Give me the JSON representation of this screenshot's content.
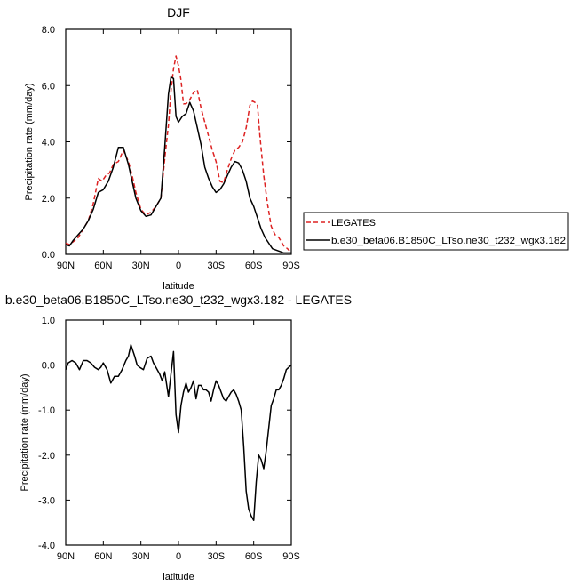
{
  "chart_data": [
    {
      "type": "line",
      "title": "DJF",
      "xlabel": "latitude",
      "ylabel": "Precipitation rate (mm/day)",
      "xlim": [
        90,
        -90
      ],
      "ylim": [
        0,
        8
      ],
      "x_ticks": [
        90,
        60,
        30,
        0,
        -30,
        -60,
        -90
      ],
      "x_tick_labels": [
        "90N",
        "60N",
        "30N",
        "0",
        "30S",
        "60S",
        "90S"
      ],
      "y_ticks": [
        0,
        2,
        4,
        6,
        8
      ],
      "y_tick_labels": [
        "0.0",
        "2.0",
        "4.0",
        "6.0",
        "8.0"
      ],
      "grid": false,
      "legend_position": "right",
      "series": [
        {
          "name": "LEGATES",
          "color": "#dd2222",
          "dash": "dashed",
          "x": [
            90,
            87,
            84,
            80,
            76,
            72,
            68,
            64,
            61,
            58,
            55,
            52,
            48,
            44,
            40,
            37,
            34,
            30,
            26,
            22,
            18,
            14,
            11,
            8,
            6,
            4,
            2,
            0,
            -2,
            -4,
            -6,
            -9,
            -12,
            -15,
            -18,
            -21,
            -24,
            -27,
            -30,
            -33,
            -36,
            -39,
            -42,
            -45,
            -48,
            -51,
            -54,
            -57,
            -59,
            -61,
            -63,
            -65,
            -68,
            -71,
            -74,
            -77,
            -80,
            -84,
            -87,
            -90
          ],
          "y": [
            0.4,
            0.35,
            0.45,
            0.6,
            0.9,
            1.2,
            1.8,
            2.7,
            2.6,
            2.8,
            2.9,
            3.2,
            3.3,
            3.7,
            3.3,
            2.8,
            2.2,
            1.6,
            1.4,
            1.5,
            1.7,
            2.0,
            3.4,
            4.6,
            5.8,
            6.6,
            7.05,
            6.7,
            6.2,
            5.35,
            5.35,
            5.5,
            5.75,
            5.85,
            5.2,
            4.7,
            4.2,
            3.7,
            3.3,
            2.6,
            2.55,
            3.0,
            3.4,
            3.7,
            3.8,
            4.0,
            4.5,
            5.3,
            5.45,
            5.4,
            5.3,
            4.2,
            2.8,
            1.8,
            1.0,
            0.7,
            0.6,
            0.3,
            0.2,
            0.05
          ]
        },
        {
          "name": "b.e30_beta06.B1850C_LTso.ne30_t232_wgx3.182",
          "color": "#000000",
          "dash": "solid",
          "x": [
            90,
            87,
            84,
            80,
            76,
            72,
            68,
            64,
            60,
            56,
            52,
            48,
            44,
            40,
            37,
            34,
            30,
            26,
            22,
            18,
            14,
            11,
            8,
            6,
            4,
            2,
            0,
            -3,
            -6,
            -9,
            -12,
            -15,
            -18,
            -21,
            -24,
            -27,
            -30,
            -33,
            -36,
            -39,
            -42,
            -45,
            -48,
            -51,
            -54,
            -57,
            -60,
            -63,
            -66,
            -69,
            -72,
            -75,
            -78,
            -81,
            -84,
            -87,
            -90
          ],
          "y": [
            0.35,
            0.3,
            0.5,
            0.7,
            0.9,
            1.2,
            1.6,
            2.2,
            2.3,
            2.6,
            3.1,
            3.8,
            3.8,
            3.2,
            2.6,
            2.0,
            1.55,
            1.35,
            1.4,
            1.7,
            2.0,
            3.8,
            5.7,
            6.3,
            6.25,
            4.9,
            4.7,
            4.9,
            5.0,
            5.4,
            5.1,
            4.5,
            3.9,
            3.1,
            2.7,
            2.4,
            2.2,
            2.3,
            2.5,
            2.8,
            3.1,
            3.3,
            3.25,
            3.0,
            2.6,
            2.0,
            1.7,
            1.3,
            0.9,
            0.6,
            0.4,
            0.2,
            0.15,
            0.1,
            0.05,
            0.05,
            0.05
          ]
        }
      ]
    },
    {
      "type": "line",
      "title": "b.e30_beta06.B1850C_LTso.ne30_t232_wgx3.182 - LEGATES",
      "xlabel": "latitude",
      "ylabel": "Precipitation rate (mm/day)",
      "xlim": [
        90,
        -90
      ],
      "ylim": [
        -4,
        1
      ],
      "x_ticks": [
        90,
        60,
        30,
        0,
        -30,
        -60,
        -90
      ],
      "x_tick_labels": [
        "90N",
        "60N",
        "30N",
        "0",
        "30S",
        "60S",
        "90S"
      ],
      "y_ticks": [
        -4,
        -3,
        -2,
        -1,
        0,
        1
      ],
      "y_tick_labels": [
        "-4.0",
        "-3.0",
        "-2.0",
        "-1.0",
        "0.0",
        "1.0"
      ],
      "grid": false,
      "series": [
        {
          "color": "#000000",
          "dash": "solid",
          "x": [
            90,
            88,
            85,
            82,
            79,
            76,
            73,
            70,
            67,
            64,
            62,
            60,
            57,
            54,
            51,
            48,
            45,
            42,
            40,
            38,
            35,
            33,
            31,
            28,
            25,
            22,
            20,
            18,
            15,
            13,
            11,
            8,
            6,
            4,
            2,
            0,
            -2,
            -4,
            -6,
            -8,
            -10,
            -12,
            -14,
            -16,
            -18,
            -20,
            -22,
            -24,
            -26,
            -28,
            -30,
            -32,
            -34,
            -36,
            -38,
            -40,
            -42,
            -44,
            -46,
            -48,
            -50,
            -52,
            -54,
            -56,
            -58,
            -60,
            -62,
            -64,
            -66,
            -68,
            -70,
            -72,
            -74,
            -76,
            -78,
            -80,
            -82,
            -84,
            -86,
            -88,
            -90
          ],
          "y": [
            -0.1,
            0.05,
            0.1,
            0.05,
            -0.1,
            0.1,
            0.1,
            0.05,
            -0.05,
            -0.1,
            -0.05,
            0.05,
            -0.1,
            -0.4,
            -0.25,
            -0.25,
            -0.1,
            0.1,
            0.2,
            0.45,
            0.2,
            0.0,
            -0.05,
            -0.1,
            0.15,
            0.2,
            0.05,
            -0.05,
            -0.2,
            -0.35,
            -0.15,
            -0.7,
            -0.2,
            0.3,
            -1.1,
            -1.5,
            -0.9,
            -0.6,
            -0.4,
            -0.6,
            -0.5,
            -0.35,
            -0.75,
            -0.45,
            -0.45,
            -0.55,
            -0.55,
            -0.6,
            -0.8,
            -0.55,
            -0.35,
            -0.45,
            -0.6,
            -0.75,
            -0.8,
            -0.7,
            -0.6,
            -0.55,
            -0.65,
            -0.8,
            -1.0,
            -1.8,
            -2.8,
            -3.2,
            -3.35,
            -3.45,
            -2.6,
            -2.0,
            -2.1,
            -2.3,
            -1.9,
            -1.4,
            -0.9,
            -0.75,
            -0.55,
            -0.55,
            -0.45,
            -0.3,
            -0.1,
            -0.05,
            0.0
          ]
        }
      ]
    }
  ]
}
